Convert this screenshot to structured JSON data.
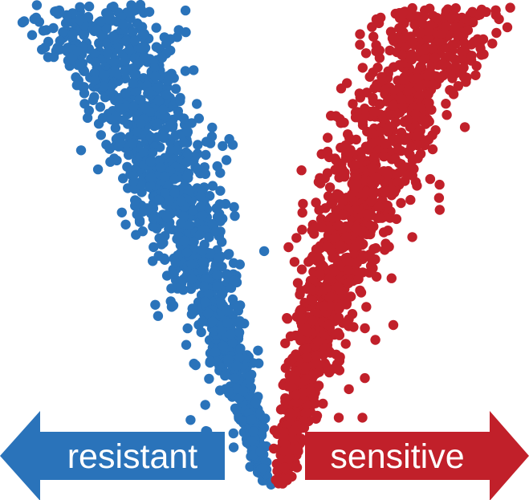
{
  "colors": {
    "resistant": "#2a73ba",
    "sensitive": "#c1202a",
    "background": "#ffffff",
    "label_text": "#ffffff"
  },
  "labels": {
    "left": "resistant",
    "right": "sensitive"
  },
  "arrows": {
    "left": {
      "direction": "left",
      "label": "resistant"
    },
    "right": {
      "direction": "right",
      "label": "sensitive"
    }
  }
}
